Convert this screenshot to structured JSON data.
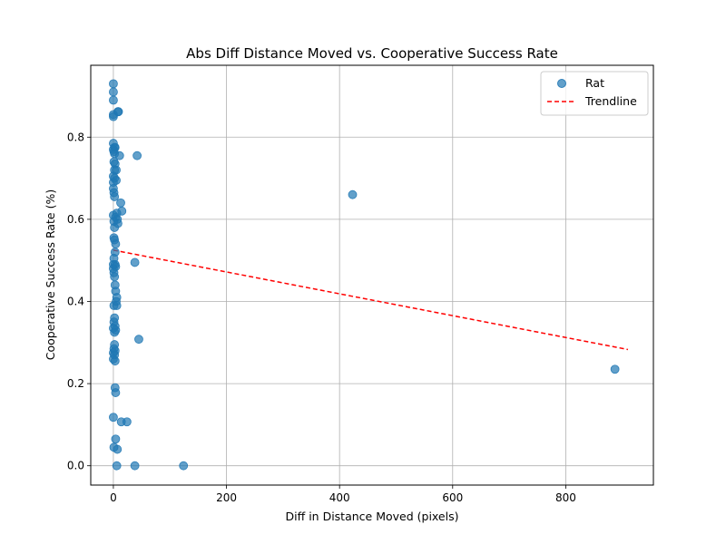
{
  "chart_data": {
    "type": "scatter",
    "title": "Abs Diff Distance Moved vs. Cooperative Success Rate",
    "xlabel": "Diff in Distance Moved (pixels)",
    "ylabel": "Cooperative Success Rate (%)",
    "xlim": [
      -40,
      955
    ],
    "ylim": [
      -0.047,
      0.975
    ],
    "xticks": [
      0,
      200,
      400,
      600,
      800
    ],
    "yticks": [
      0.0,
      0.2,
      0.4,
      0.6,
      0.8
    ],
    "xtick_labels": [
      "0",
      "200",
      "400",
      "600",
      "800"
    ],
    "ytick_labels": [
      "0.0",
      "0.2",
      "0.4",
      "0.6",
      "0.8"
    ],
    "grid": true,
    "legend_position": "top-right",
    "series": [
      {
        "name": "Rat",
        "kind": "scatter",
        "color": "#1f77b4",
        "points": [
          [
            0,
            0.93
          ],
          [
            0,
            0.91
          ],
          [
            0,
            0.89
          ],
          [
            8,
            0.862
          ],
          [
            9,
            0.862
          ],
          [
            0,
            0.855
          ],
          [
            0,
            0.85
          ],
          [
            0,
            0.785
          ],
          [
            2,
            0.775
          ],
          [
            3,
            0.775
          ],
          [
            0,
            0.77
          ],
          [
            1,
            0.765
          ],
          [
            2,
            0.76
          ],
          [
            11,
            0.755
          ],
          [
            42,
            0.755
          ],
          [
            1,
            0.74
          ],
          [
            3,
            0.735
          ],
          [
            2,
            0.72
          ],
          [
            5,
            0.72
          ],
          [
            0,
            0.705
          ],
          [
            2,
            0.7
          ],
          [
            0,
            0.69
          ],
          [
            5,
            0.695
          ],
          [
            0,
            0.675
          ],
          [
            1,
            0.665
          ],
          [
            2,
            0.655
          ],
          [
            423,
            0.66
          ],
          [
            13,
            0.64
          ],
          [
            15,
            0.62
          ],
          [
            6,
            0.615
          ],
          [
            0,
            0.61
          ],
          [
            4,
            0.605
          ],
          [
            7,
            0.6
          ],
          [
            1,
            0.595
          ],
          [
            8,
            0.59
          ],
          [
            2,
            0.58
          ],
          [
            1,
            0.555
          ],
          [
            2,
            0.55
          ],
          [
            4,
            0.54
          ],
          [
            3,
            0.52
          ],
          [
            1,
            0.505
          ],
          [
            38,
            0.495
          ],
          [
            0,
            0.49
          ],
          [
            3,
            0.49
          ],
          [
            0,
            0.48
          ],
          [
            4,
            0.485
          ],
          [
            1,
            0.47
          ],
          [
            2,
            0.46
          ],
          [
            3,
            0.44
          ],
          [
            4,
            0.425
          ],
          [
            6,
            0.41
          ],
          [
            5,
            0.4
          ],
          [
            1,
            0.39
          ],
          [
            6,
            0.39
          ],
          [
            2,
            0.36
          ],
          [
            1,
            0.35
          ],
          [
            3,
            0.34
          ],
          [
            0,
            0.335
          ],
          [
            2,
            0.325
          ],
          [
            4,
            0.33
          ],
          [
            45,
            0.308
          ],
          [
            2,
            0.295
          ],
          [
            1,
            0.285
          ],
          [
            3,
            0.28
          ],
          [
            0,
            0.275
          ],
          [
            2,
            0.27
          ],
          [
            0,
            0.26
          ],
          [
            3,
            0.255
          ],
          [
            887,
            0.235
          ],
          [
            3,
            0.19
          ],
          [
            4,
            0.178
          ],
          [
            0,
            0.118
          ],
          [
            14,
            0.107
          ],
          [
            24,
            0.107
          ],
          [
            4,
            0.065
          ],
          [
            1,
            0.045
          ],
          [
            7,
            0.04
          ],
          [
            6,
            0.0
          ],
          [
            38,
            0.0
          ],
          [
            124,
            0.0
          ]
        ]
      },
      {
        "name": "Trendline",
        "kind": "line",
        "color": "#ff0000",
        "dashed": true,
        "points": [
          [
            0,
            0.525
          ],
          [
            910,
            0.283
          ]
        ]
      }
    ]
  }
}
